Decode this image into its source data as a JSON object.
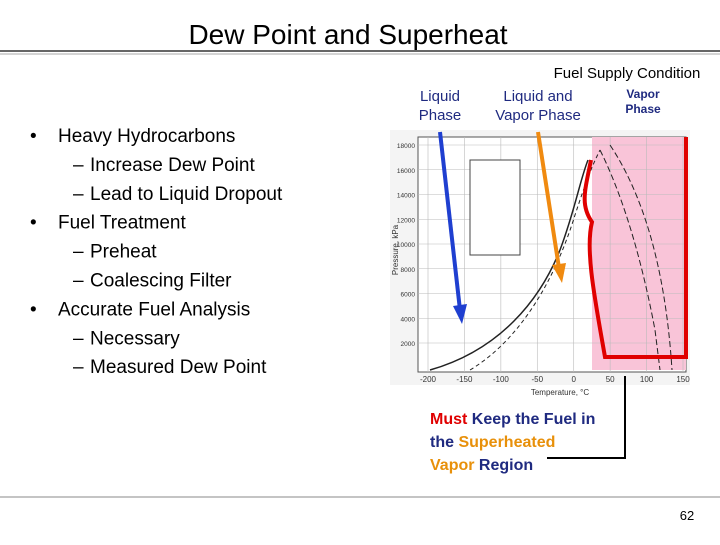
{
  "header": {
    "title": "Dew Point and Superheat"
  },
  "bullets": [
    {
      "text": "Heavy Hydrocarbons",
      "level": 1
    },
    {
      "text": "Increase Dew Point",
      "level": 2
    },
    {
      "text": "Lead to Liquid Dropout",
      "level": 2
    },
    {
      "text": "Fuel Treatment",
      "level": 1
    },
    {
      "text": "Preheat",
      "level": 2
    },
    {
      "text": "Coalescing Filter",
      "level": 2
    },
    {
      "text": "Accurate Fuel Analysis",
      "level": 1
    },
    {
      "text": "Necessary",
      "level": 2
    },
    {
      "text": "Measured Dew Point",
      "level": 2
    }
  ],
  "figure": {
    "heading": "Fuel Supply Condition",
    "regions": [
      [
        "Liquid",
        "Phase"
      ],
      [
        "Liquid and",
        "Vapor Phase"
      ],
      [
        "Vapor",
        "Phase"
      ]
    ],
    "y_axis_label": "Pressure, kPa",
    "x_axis_label": "Temperature, °C",
    "yticks": [
      "18000",
      "16000",
      "14000",
      "12000",
      "10000",
      "8000",
      "6000",
      "4000",
      "2000"
    ],
    "xticks": [
      "-200",
      "-150",
      "-100",
      "-50",
      "0",
      "50",
      "100",
      "150"
    ]
  },
  "callout": {
    "lines": [
      [
        {
          "text": "Must",
          "color": "#e00000"
        },
        {
          "text": " Keep the Fuel in",
          "color": "#1f2a80"
        }
      ],
      [
        {
          "text": "the ",
          "color": "#1f2a80"
        },
        {
          "text": "Superheated",
          "color": "#e8900a"
        }
      ],
      [
        {
          "text": "Vapor",
          "color": "#e8900a"
        },
        {
          "text": " Region",
          "color": "#1f2a80"
        }
      ]
    ]
  },
  "footer": {
    "page_number": "62"
  }
}
